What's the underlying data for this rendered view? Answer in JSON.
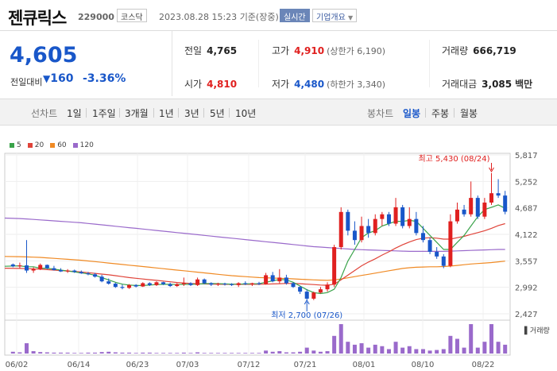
{
  "header": {
    "name": "젠큐릭스",
    "code": "229000",
    "market": "코스닥",
    "datetime": "2023.08.28 15:23",
    "basis": "기준(장중)",
    "live_label": "실시간",
    "corp_label": "기업개요"
  },
  "price": {
    "current": "4,605",
    "change_label": "전일대비",
    "change": "160",
    "change_pct": "-3.36%"
  },
  "stats": {
    "prev_label": "전일",
    "prev": "4,765",
    "high_label": "고가",
    "high": "4,910",
    "upper_label": "(상한가 6,190)",
    "volume_label": "거래량",
    "volume": "666,719",
    "open_label": "시가",
    "open": "4,810",
    "low_label": "저가",
    "low": "4,480",
    "lower_label": "(하한가 3,340)",
    "amount_label": "거래대금",
    "amount": "3,085",
    "amount_unit": "백만"
  },
  "periods": {
    "line_label": "선차트",
    "line_items": [
      "1일",
      "1주일",
      "3개월",
      "1년",
      "3년",
      "5년",
      "10년"
    ],
    "candle_label": "봉차트",
    "candle_items": [
      "일봉",
      "주봉",
      "월봉"
    ],
    "selected_candle": "일봉"
  },
  "legend": [
    {
      "label": "5",
      "color": "#3aa34a"
    },
    {
      "label": "20",
      "color": "#e0443a"
    },
    {
      "label": "60",
      "color": "#f08a24"
    },
    {
      "label": "120",
      "color": "#9a6acb"
    }
  ],
  "colors": {
    "up": "#e0201f",
    "down": "#1957c9"
  },
  "chart_data": {
    "type": "candlestick",
    "y_ticks": [
      "5,817",
      "5,252",
      "4,687",
      "4,122",
      "3,557",
      "2,992",
      "2,427"
    ],
    "ylim": [
      2427,
      5817
    ],
    "x_ticks": [
      "06/02",
      "06/14",
      "06/23",
      "07/03",
      "07/12",
      "07/21",
      "08/01",
      "08/10",
      "08/22"
    ],
    "high_annotation": "최고 5,430 (08/24)",
    "low_annotation": "최저 2,700 (07/26)",
    "volume_label": "거래량",
    "candles": [
      [
        3480,
        3500,
        3420,
        3440
      ],
      [
        3440,
        3520,
        3400,
        3460
      ],
      [
        3460,
        4000,
        3300,
        3350
      ],
      [
        3350,
        3420,
        3300,
        3380
      ],
      [
        3380,
        3500,
        3360,
        3470
      ],
      [
        3470,
        3480,
        3380,
        3400
      ],
      [
        3400,
        3450,
        3350,
        3360
      ],
      [
        3360,
        3400,
        3320,
        3330
      ],
      [
        3330,
        3380,
        3300,
        3350
      ],
      [
        3350,
        3370,
        3300,
        3320
      ],
      [
        3320,
        3350,
        3280,
        3290
      ],
      [
        3290,
        3320,
        3250,
        3270
      ],
      [
        3270,
        3300,
        3200,
        3220
      ],
      [
        3220,
        3260,
        3100,
        3120
      ],
      [
        3120,
        3180,
        3050,
        3070
      ],
      [
        3070,
        3090,
        2980,
        3000
      ],
      [
        3000,
        3050,
        2950,
        2980
      ],
      [
        2980,
        3060,
        2960,
        3040
      ],
      [
        3040,
        3060,
        2990,
        3010
      ],
      [
        3010,
        3100,
        3000,
        3080
      ],
      [
        3080,
        3100,
        3020,
        3040
      ],
      [
        3040,
        3120,
        3020,
        3100
      ],
      [
        3100,
        3110,
        3040,
        3060
      ],
      [
        3060,
        3090,
        3000,
        3020
      ],
      [
        3020,
        3080,
        3000,
        3060
      ],
      [
        3060,
        3200,
        3020,
        3080
      ],
      [
        3080,
        3100,
        3020,
        3040
      ],
      [
        3040,
        3200,
        3020,
        3160
      ],
      [
        3160,
        3180,
        3060,
        3080
      ],
      [
        3080,
        3100,
        3020,
        3050
      ],
      [
        3050,
        3090,
        3020,
        3070
      ],
      [
        3070,
        3090,
        3030,
        3060
      ],
      [
        3060,
        3080,
        3020,
        3040
      ],
      [
        3040,
        3100,
        3000,
        3080
      ],
      [
        3080,
        3120,
        3040,
        3060
      ],
      [
        3060,
        3090,
        3020,
        3080
      ],
      [
        3080,
        3110,
        3040,
        3060
      ],
      [
        3060,
        3300,
        3050,
        3250
      ],
      [
        3250,
        3320,
        3100,
        3120
      ],
      [
        3120,
        3380,
        3080,
        3200
      ],
      [
        3200,
        3260,
        3050,
        3080
      ],
      [
        3080,
        3100,
        2980,
        3000
      ],
      [
        3000,
        3020,
        2850,
        2900
      ],
      [
        2900,
        2950,
        2700,
        2750
      ],
      [
        2750,
        2900,
        2720,
        2880
      ],
      [
        2880,
        3000,
        2860,
        2950
      ],
      [
        2950,
        3100,
        2900,
        3050
      ],
      [
        3050,
        3900,
        3000,
        3850
      ],
      [
        3850,
        4700,
        3800,
        4600
      ],
      [
        4600,
        4650,
        4100,
        4200
      ],
      [
        4200,
        4400,
        3900,
        4000
      ],
      [
        4000,
        4500,
        3950,
        4300
      ],
      [
        4300,
        4450,
        4050,
        4150
      ],
      [
        4150,
        4550,
        4100,
        4450
      ],
      [
        4450,
        4600,
        4300,
        4550
      ],
      [
        4550,
        4600,
        4300,
        4350
      ],
      [
        4350,
        4900,
        4300,
        4700
      ],
      [
        4700,
        4750,
        4250,
        4300
      ],
      [
        4300,
        4700,
        4250,
        4450
      ],
      [
        4450,
        4600,
        4100,
        4150
      ],
      [
        4150,
        4300,
        3950,
        4000
      ],
      [
        4000,
        4050,
        3700,
        3750
      ],
      [
        3750,
        3850,
        3600,
        3650
      ],
      [
        3650,
        3700,
        3400,
        3450
      ],
      [
        3450,
        4550,
        3420,
        4400
      ],
      [
        4400,
        4800,
        4350,
        4650
      ],
      [
        4650,
        4750,
        4500,
        4550
      ],
      [
        4550,
        5250,
        4500,
        4900
      ],
      [
        4900,
        4950,
        4450,
        4500
      ],
      [
        4500,
        4900,
        4450,
        4800
      ],
      [
        4800,
        5430,
        4750,
        5000
      ],
      [
        5000,
        5300,
        4900,
        4950
      ],
      [
        4950,
        5050,
        4550,
        4605
      ]
    ],
    "ma5": [
      3440,
      3450,
      3430,
      3430,
      3400,
      3400,
      3380,
      3360,
      3340,
      3320,
      3300,
      3280,
      3250,
      3200,
      3150,
      3100,
      3060,
      3040,
      3030,
      3030,
      3040,
      3050,
      3055,
      3055,
      3050,
      3055,
      3055,
      3060,
      3070,
      3075,
      3070,
      3065,
      3060,
      3060,
      3065,
      3068,
      3070,
      3100,
      3130,
      3160,
      3150,
      3100,
      3020,
      2940,
      2880,
      2860,
      2880,
      2950,
      3200,
      3550,
      3800,
      4050,
      4150,
      4200,
      4300,
      4350,
      4400,
      4400,
      4420,
      4400,
      4250,
      4100,
      3950,
      3800,
      3800,
      3950,
      4100,
      4300,
      4500,
      4650,
      4700,
      4750,
      4680
    ],
    "ma20": [
      3400,
      3395,
      3390,
      3385,
      3380,
      3370,
      3360,
      3350,
      3340,
      3330,
      3320,
      3305,
      3290,
      3275,
      3260,
      3240,
      3220,
      3200,
      3185,
      3170,
      3155,
      3140,
      3125,
      3110,
      3095,
      3085,
      3075,
      3070,
      3065,
      3060,
      3058,
      3056,
      3055,
      3055,
      3055,
      3056,
      3058,
      3060,
      3065,
      3070,
      3075,
      3075,
      3070,
      3060,
      3050,
      3040,
      3035,
      3060,
      3150,
      3250,
      3350,
      3450,
      3530,
      3600,
      3680,
      3750,
      3830,
      3900,
      3960,
      4010,
      4040,
      4050,
      4040,
      4020,
      4020,
      4050,
      4080,
      4120,
      4160,
      4200,
      4250,
      4310,
      4350
    ],
    "ma60": [
      3650,
      3645,
      3640,
      3635,
      3630,
      3620,
      3610,
      3600,
      3590,
      3580,
      3570,
      3555,
      3540,
      3525,
      3510,
      3495,
      3480,
      3465,
      3450,
      3435,
      3420,
      3405,
      3390,
      3375,
      3360,
      3345,
      3330,
      3315,
      3300,
      3285,
      3270,
      3255,
      3240,
      3230,
      3220,
      3210,
      3200,
      3195,
      3190,
      3185,
      3180,
      3172,
      3165,
      3158,
      3150,
      3145,
      3140,
      3150,
      3170,
      3195,
      3220,
      3245,
      3270,
      3295,
      3320,
      3345,
      3370,
      3395,
      3410,
      3420,
      3425,
      3430,
      3430,
      3435,
      3445,
      3460,
      3475,
      3490,
      3500,
      3510,
      3520,
      3535,
      3550
    ],
    "ma120": [
      4470,
      4460,
      4450,
      4440,
      4430,
      4420,
      4410,
      4400,
      4390,
      4380,
      4370,
      4355,
      4340,
      4325,
      4310,
      4295,
      4280,
      4265,
      4250,
      4235,
      4220,
      4205,
      4190,
      4175,
      4160,
      4145,
      4130,
      4115,
      4100,
      4085,
      4070,
      4055,
      4040,
      4025,
      4010,
      3995,
      3980,
      3965,
      3950,
      3935,
      3920,
      3905,
      3890,
      3875,
      3860,
      3850,
      3840,
      3830,
      3820,
      3810,
      3800,
      3795,
      3790,
      3785,
      3780,
      3775,
      3770,
      3765,
      3760,
      3760,
      3760,
      3760,
      3760,
      3760,
      3765,
      3770,
      3775,
      3780,
      3785,
      3790,
      3795,
      3800,
      3800
    ],
    "volumes": [
      6,
      4,
      35,
      8,
      5,
      4,
      3,
      3,
      3,
      2,
      2,
      3,
      3,
      5,
      6,
      4,
      3,
      3,
      2,
      3,
      3,
      2,
      2,
      2,
      2,
      3,
      2,
      4,
      2,
      2,
      2,
      2,
      2,
      2,
      2,
      2,
      2,
      10,
      6,
      8,
      4,
      4,
      6,
      20,
      10,
      6,
      8,
      60,
      100,
      40,
      30,
      35,
      20,
      30,
      25,
      15,
      40,
      20,
      25,
      15,
      15,
      10,
      12,
      15,
      60,
      50,
      20,
      100,
      20,
      40,
      100,
      40,
      30
    ]
  }
}
